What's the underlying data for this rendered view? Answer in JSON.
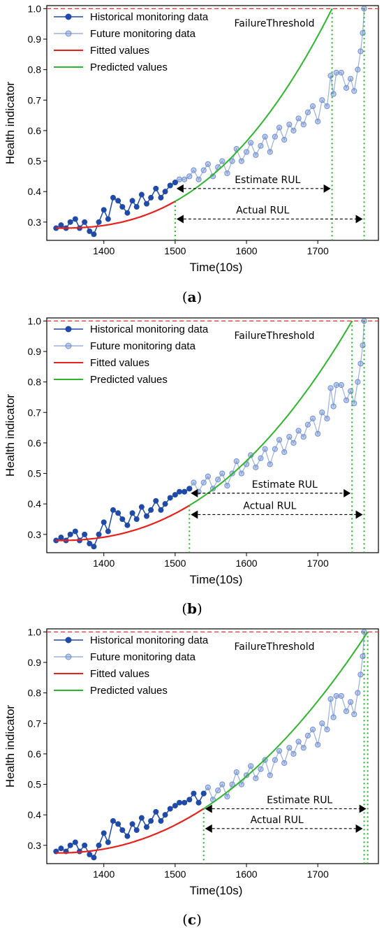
{
  "colors": {
    "historical": "#1f4aa8",
    "future": "#6f8fd0",
    "fitted": "#e8211c",
    "predicted": "#2eb52e",
    "threshold": "#ff2a2a",
    "marker_lines": "#1fb01f"
  },
  "chart_data": [
    {
      "panel": "(a)",
      "type": "line",
      "xlabel": "Time(10s)",
      "ylabel": "Health indicator",
      "xlim": [
        1320,
        1785
      ],
      "ylim": [
        0.24,
        1.01
      ],
      "xticks": [
        1400,
        1500,
        1600,
        1700
      ],
      "yticks": [
        0.3,
        0.4,
        0.5,
        0.6,
        0.7,
        0.8,
        0.9,
        1.0
      ],
      "legend": [
        "Historical monitoring data",
        "Future monitoring data",
        "Fitted values",
        "Predicted values"
      ],
      "legend_position": "top-left",
      "threshold_label": "FailureThreshold",
      "failure_threshold": 1.0,
      "prediction_start": 1500,
      "predicted_failure": 1720,
      "actual_failure": 1765,
      "estimate_label": "Estimate RUL",
      "actual_label": "Actual RUL",
      "estimate_arrow_y": 0.41,
      "actual_arrow_y": 0.31,
      "fitted": {
        "x_start": 1333,
        "a": 0.28,
        "b": 0.72,
        "p": 2.5
      }
    },
    {
      "panel": "(b)",
      "type": "line",
      "xlabel": "Time(10s)",
      "ylabel": "Health indicator",
      "xlim": [
        1320,
        1785
      ],
      "ylim": [
        0.24,
        1.01
      ],
      "xticks": [
        1400,
        1500,
        1600,
        1700
      ],
      "yticks": [
        0.3,
        0.4,
        0.5,
        0.6,
        0.7,
        0.8,
        0.9,
        1.0
      ],
      "legend": [
        "Historical monitoring data",
        "Future monitoring data",
        "Fitted values",
        "Predicted values"
      ],
      "legend_position": "top-left",
      "threshold_label": "FailureThreshold",
      "failure_threshold": 1.0,
      "prediction_start": 1520,
      "predicted_failure": 1748,
      "actual_failure": 1765,
      "estimate_label": "Estimate RUL",
      "actual_label": "Actual RUL",
      "estimate_arrow_y": 0.435,
      "actual_arrow_y": 0.365,
      "fitted": {
        "x_start": 1333,
        "a": 0.28,
        "b": 0.72,
        "p": 2.3
      }
    },
    {
      "panel": "(c)",
      "type": "line",
      "xlabel": "Time(10s)",
      "ylabel": "Health indicator",
      "xlim": [
        1320,
        1785
      ],
      "ylim": [
        0.24,
        1.01
      ],
      "xticks": [
        1400,
        1500,
        1600,
        1700
      ],
      "yticks": [
        0.3,
        0.4,
        0.5,
        0.6,
        0.7,
        0.8,
        0.9,
        1.0
      ],
      "legend": [
        "Historical monitoring data",
        "Future monitoring data",
        "Fitted values",
        "Predicted values"
      ],
      "legend_position": "top-left",
      "threshold_label": "FailureThreshold",
      "failure_threshold": 1.0,
      "prediction_start": 1540,
      "predicted_failure": 1770,
      "actual_failure": 1765,
      "estimate_label": "Estimate RUL",
      "actual_label": "Actual RUL",
      "estimate_arrow_y": 0.42,
      "actual_arrow_y": 0.355,
      "fitted": {
        "x_start": 1333,
        "a": 0.275,
        "b": 0.725,
        "p": 2.15
      }
    }
  ],
  "series_points": {
    "x": [
      1333,
      1340,
      1347,
      1353,
      1360,
      1366,
      1373,
      1380,
      1386,
      1393,
      1400,
      1406,
      1413,
      1420,
      1426,
      1433,
      1440,
      1446,
      1453,
      1460,
      1466,
      1473,
      1480,
      1486,
      1493,
      1500,
      1506,
      1513,
      1520,
      1526,
      1533,
      1540,
      1546,
      1553,
      1560,
      1566,
      1573,
      1580,
      1586,
      1593,
      1600,
      1606,
      1613,
      1620,
      1626,
      1633,
      1640,
      1646,
      1653,
      1660,
      1666,
      1673,
      1680,
      1686,
      1693,
      1700,
      1706,
      1713,
      1718,
      1722,
      1726,
      1733,
      1740,
      1746,
      1751,
      1756,
      1760,
      1763,
      1765
    ],
    "y": [
      0.28,
      0.29,
      0.28,
      0.3,
      0.31,
      0.28,
      0.3,
      0.27,
      0.26,
      0.3,
      0.34,
      0.31,
      0.38,
      0.37,
      0.35,
      0.33,
      0.37,
      0.35,
      0.39,
      0.36,
      0.38,
      0.41,
      0.38,
      0.4,
      0.42,
      0.43,
      0.44,
      0.44,
      0.45,
      0.47,
      0.44,
      0.47,
      0.49,
      0.45,
      0.48,
      0.5,
      0.46,
      0.5,
      0.54,
      0.5,
      0.53,
      0.56,
      0.52,
      0.55,
      0.58,
      0.53,
      0.58,
      0.61,
      0.57,
      0.62,
      0.6,
      0.64,
      0.62,
      0.66,
      0.68,
      0.63,
      0.7,
      0.68,
      0.78,
      0.72,
      0.79,
      0.79,
      0.74,
      0.77,
      0.73,
      0.8,
      0.86,
      0.92,
      1.0
    ]
  }
}
